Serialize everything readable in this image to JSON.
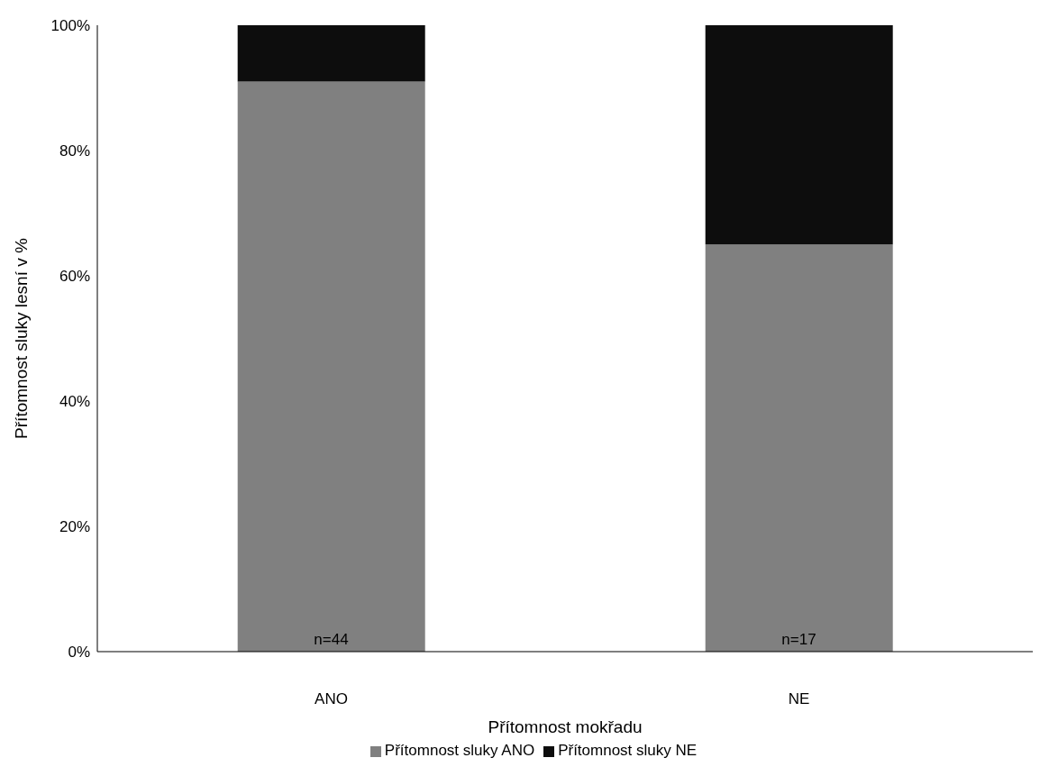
{
  "chart_data": {
    "type": "bar",
    "stacked": true,
    "categories": [
      "ANO",
      "NE"
    ],
    "series": [
      {
        "name": "Přítomnost sluky ANO",
        "color": "#808080",
        "values": [
          91,
          65
        ]
      },
      {
        "name": "Přítomnost sluky NE",
        "color": "#0d0d0d",
        "values": [
          9,
          35
        ]
      }
    ],
    "ylim": [
      0,
      100
    ],
    "yticks": [
      {
        "value": 0,
        "label": "0%"
      },
      {
        "value": 20,
        "label": "20%"
      },
      {
        "value": 40,
        "label": "40%"
      },
      {
        "value": 60,
        "label": "60%"
      },
      {
        "value": 80,
        "label": "80%"
      },
      {
        "value": 100,
        "label": "100%"
      }
    ],
    "xlabel": "Přítomnost mokřadu",
    "ylabel": "Přítomnost sluky lesní v %",
    "annotations": [
      "n=44",
      "n=17"
    ],
    "grid": false,
    "legend": "bottom"
  }
}
